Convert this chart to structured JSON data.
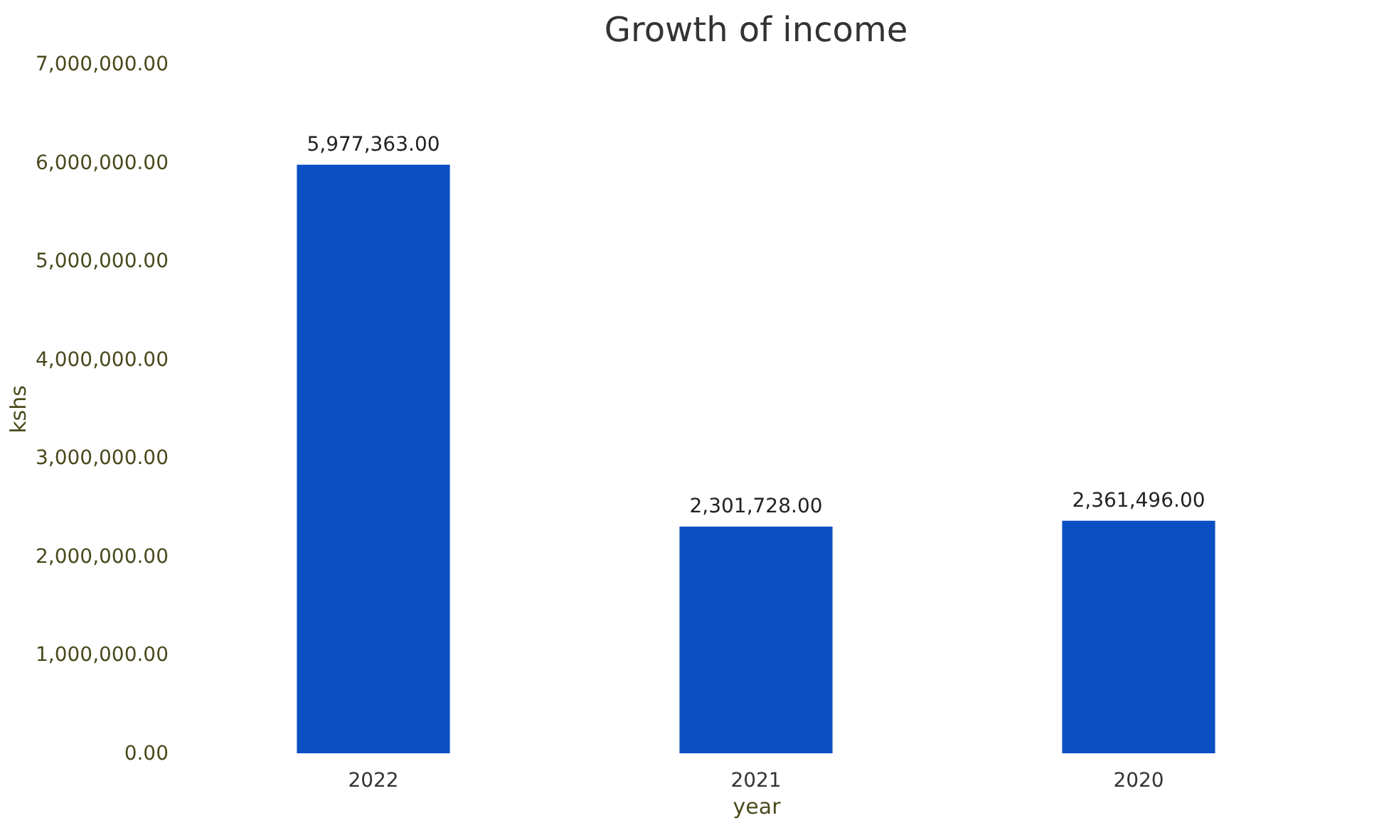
{
  "chart_data": {
    "type": "bar",
    "title": "Growth of income",
    "xlabel": "year",
    "ylabel": "kshs",
    "categories": [
      "2022",
      "2021",
      "2020"
    ],
    "values": [
      5977363,
      2301728,
      2361496
    ],
    "value_labels": [
      "5,977,363.00",
      "2,301,728.00",
      "2,361,496.00"
    ],
    "color": "#0c4fc4",
    "ylim": [
      0,
      7000000
    ],
    "yticks": [
      {
        "value": 0,
        "label": "0.00"
      },
      {
        "value": 1000000,
        "label": "1,000,000.00"
      },
      {
        "value": 2000000,
        "label": "2,000,000.00"
      },
      {
        "value": 3000000,
        "label": "3,000,000.00"
      },
      {
        "value": 4000000,
        "label": "4,000,000.00"
      },
      {
        "value": 5000000,
        "label": "5,000,000.00"
      },
      {
        "value": 6000000,
        "label": "6,000,000.00"
      },
      {
        "value": 7000000,
        "label": "7,000,000.00"
      }
    ],
    "grid": false
  }
}
